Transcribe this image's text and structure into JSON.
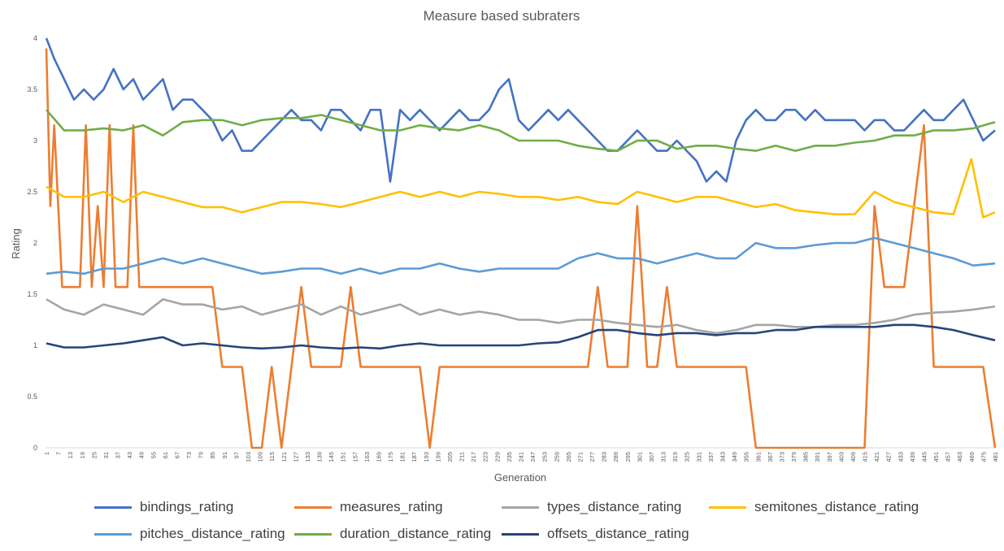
{
  "chart_data": {
    "type": "line",
    "title": "Measure based subraters",
    "xlabel": "Generation",
    "ylabel": "Rating",
    "ylim": [
      0,
      4
    ],
    "xlim": [
      1,
      481
    ],
    "ytick_labels": [
      "0",
      "0.5",
      "1",
      "1.5",
      "2",
      "2.5",
      "3",
      "3.5",
      "4"
    ],
    "xtick_labels": [
      "1",
      "7",
      "13",
      "19",
      "25",
      "31",
      "37",
      "43",
      "49",
      "55",
      "61",
      "67",
      "73",
      "79",
      "85",
      "91",
      "97",
      "103",
      "109",
      "115",
      "121",
      "127",
      "133",
      "139",
      "145",
      "151",
      "157",
      "163",
      "169",
      "175",
      "181",
      "187",
      "193",
      "199",
      "205",
      "211",
      "217",
      "223",
      "229",
      "235",
      "241",
      "247",
      "253",
      "259",
      "265",
      "271",
      "277",
      "283",
      "289",
      "295",
      "301",
      "307",
      "313",
      "319",
      "325",
      "331",
      "337",
      "343",
      "349",
      "355",
      "361",
      "367",
      "373",
      "379",
      "385",
      "391",
      "397",
      "403",
      "409",
      "415",
      "421",
      "427",
      "433",
      "439",
      "445",
      "451",
      "457",
      "463",
      "469",
      "475",
      "481"
    ],
    "grid": false,
    "legend_position": "bottom",
    "series": [
      {
        "name": "bindings_rating",
        "color": "#4472C4",
        "x": [
          1,
          5,
          10,
          15,
          20,
          25,
          30,
          35,
          40,
          45,
          50,
          55,
          60,
          65,
          70,
          75,
          80,
          85,
          90,
          95,
          100,
          105,
          110,
          115,
          120,
          125,
          130,
          135,
          140,
          145,
          150,
          155,
          160,
          165,
          170,
          175,
          180,
          185,
          190,
          195,
          200,
          205,
          210,
          215,
          220,
          225,
          230,
          235,
          240,
          245,
          250,
          255,
          260,
          265,
          270,
          275,
          280,
          285,
          290,
          295,
          300,
          305,
          310,
          315,
          320,
          325,
          330,
          335,
          340,
          345,
          350,
          355,
          360,
          365,
          370,
          375,
          380,
          385,
          390,
          395,
          400,
          405,
          410,
          415,
          420,
          425,
          430,
          435,
          440,
          445,
          450,
          455,
          460,
          465,
          470,
          475,
          481
        ],
        "y": [
          4.0,
          3.8,
          3.6,
          3.4,
          3.5,
          3.4,
          3.5,
          3.7,
          3.5,
          3.6,
          3.4,
          3.5,
          3.6,
          3.3,
          3.4,
          3.4,
          3.3,
          3.2,
          3.0,
          3.1,
          2.9,
          2.9,
          3.0,
          3.1,
          3.2,
          3.3,
          3.2,
          3.2,
          3.1,
          3.3,
          3.3,
          3.2,
          3.1,
          3.3,
          3.3,
          2.6,
          3.3,
          3.2,
          3.3,
          3.2,
          3.1,
          3.2,
          3.3,
          3.2,
          3.2,
          3.3,
          3.5,
          3.6,
          3.2,
          3.1,
          3.2,
          3.3,
          3.2,
          3.3,
          3.2,
          3.1,
          3.0,
          2.9,
          2.9,
          3.0,
          3.1,
          3.0,
          2.9,
          2.9,
          3.0,
          2.9,
          2.8,
          2.6,
          2.7,
          2.6,
          3.0,
          3.2,
          3.3,
          3.2,
          3.2,
          3.3,
          3.3,
          3.2,
          3.3,
          3.2,
          3.2,
          3.2,
          3.2,
          3.1,
          3.2,
          3.2,
          3.1,
          3.1,
          3.2,
          3.3,
          3.2,
          3.2,
          3.3,
          3.4,
          3.2,
          3.0,
          3.1
        ]
      },
      {
        "name": "measures_rating",
        "color": "#ED7D31",
        "x": [
          1,
          3,
          5,
          7,
          9,
          11,
          13,
          15,
          18,
          21,
          24,
          27,
          30,
          33,
          36,
          39,
          42,
          45,
          48,
          51,
          55,
          60,
          65,
          70,
          75,
          80,
          85,
          90,
          95,
          100,
          105,
          110,
          115,
          120,
          125,
          130,
          135,
          140,
          145,
          150,
          155,
          160,
          165,
          170,
          175,
          180,
          185,
          190,
          195,
          200,
          205,
          210,
          215,
          220,
          225,
          230,
          235,
          240,
          245,
          250,
          255,
          260,
          265,
          270,
          275,
          280,
          285,
          290,
          295,
          300,
          305,
          310,
          315,
          320,
          325,
          330,
          335,
          340,
          345,
          350,
          355,
          360,
          365,
          370,
          375,
          380,
          385,
          390,
          395,
          400,
          405,
          410,
          415,
          420,
          425,
          430,
          435,
          440,
          445,
          450,
          455,
          460,
          465,
          470,
          475,
          481
        ],
        "y": [
          3.9,
          2.36,
          3.15,
          2.36,
          1.57,
          1.57,
          1.57,
          1.57,
          1.57,
          3.15,
          1.57,
          2.36,
          1.57,
          3.15,
          1.57,
          1.57,
          1.57,
          3.15,
          1.57,
          1.57,
          1.57,
          1.57,
          1.57,
          1.57,
          1.57,
          1.57,
          1.57,
          0.79,
          0.79,
          0.79,
          0.0,
          0.0,
          0.79,
          0.0,
          0.79,
          1.57,
          0.79,
          0.79,
          0.79,
          0.79,
          1.57,
          0.79,
          0.79,
          0.79,
          0.79,
          0.79,
          0.79,
          0.79,
          0.0,
          0.79,
          0.79,
          0.79,
          0.79,
          0.79,
          0.79,
          0.79,
          0.79,
          0.79,
          0.79,
          0.79,
          0.79,
          0.79,
          0.79,
          0.79,
          0.79,
          1.57,
          0.79,
          0.79,
          0.79,
          2.36,
          0.79,
          0.79,
          1.57,
          0.79,
          0.79,
          0.79,
          0.79,
          0.79,
          0.79,
          0.79,
          0.79,
          0.0,
          0.0,
          0.0,
          0.0,
          0.0,
          0.0,
          0.0,
          0.0,
          0.0,
          0.0,
          0.0,
          0.0,
          2.36,
          1.57,
          1.57,
          1.57,
          2.36,
          3.15,
          0.79,
          0.79,
          0.79,
          0.79,
          0.79,
          0.79,
          0.0
        ]
      },
      {
        "name": "types_distance_rating",
        "color": "#A5A5A5",
        "x": [
          1,
          10,
          20,
          30,
          40,
          50,
          60,
          70,
          80,
          90,
          100,
          110,
          120,
          130,
          140,
          150,
          160,
          170,
          180,
          190,
          200,
          210,
          220,
          230,
          240,
          250,
          260,
          270,
          280,
          290,
          300,
          310,
          320,
          330,
          340,
          350,
          360,
          370,
          380,
          390,
          400,
          410,
          420,
          430,
          440,
          450,
          460,
          470,
          481
        ],
        "y": [
          1.45,
          1.35,
          1.3,
          1.4,
          1.35,
          1.3,
          1.45,
          1.4,
          1.4,
          1.35,
          1.38,
          1.3,
          1.35,
          1.4,
          1.3,
          1.38,
          1.3,
          1.35,
          1.4,
          1.3,
          1.35,
          1.3,
          1.33,
          1.3,
          1.25,
          1.25,
          1.22,
          1.25,
          1.25,
          1.22,
          1.2,
          1.18,
          1.2,
          1.15,
          1.12,
          1.15,
          1.2,
          1.2,
          1.18,
          1.18,
          1.2,
          1.2,
          1.22,
          1.25,
          1.3,
          1.32,
          1.33,
          1.35,
          1.38
        ]
      },
      {
        "name": "semitones_distance_rating",
        "color": "#FFC000",
        "x": [
          1,
          10,
          20,
          30,
          40,
          50,
          60,
          70,
          80,
          90,
          100,
          110,
          120,
          130,
          140,
          150,
          160,
          170,
          180,
          190,
          200,
          210,
          220,
          230,
          240,
          250,
          260,
          270,
          280,
          290,
          300,
          310,
          320,
          330,
          340,
          350,
          360,
          370,
          380,
          390,
          400,
          410,
          420,
          430,
          440,
          450,
          460,
          469,
          475,
          481
        ],
        "y": [
          2.55,
          2.45,
          2.45,
          2.5,
          2.4,
          2.5,
          2.45,
          2.4,
          2.35,
          2.35,
          2.3,
          2.35,
          2.4,
          2.4,
          2.38,
          2.35,
          2.4,
          2.45,
          2.5,
          2.45,
          2.5,
          2.45,
          2.5,
          2.48,
          2.45,
          2.45,
          2.42,
          2.45,
          2.4,
          2.38,
          2.5,
          2.45,
          2.4,
          2.45,
          2.45,
          2.4,
          2.35,
          2.38,
          2.32,
          2.3,
          2.28,
          2.28,
          2.5,
          2.4,
          2.35,
          2.3,
          2.28,
          2.82,
          2.25,
          2.3
        ]
      },
      {
        "name": "pitches_distance_rating",
        "color": "#5B9BD5",
        "x": [
          1,
          10,
          20,
          30,
          40,
          50,
          60,
          70,
          80,
          90,
          100,
          110,
          120,
          130,
          140,
          150,
          160,
          170,
          180,
          190,
          200,
          210,
          220,
          230,
          240,
          250,
          260,
          270,
          280,
          290,
          300,
          310,
          320,
          330,
          340,
          350,
          360,
          370,
          380,
          390,
          400,
          410,
          420,
          430,
          440,
          450,
          460,
          470,
          481
        ],
        "y": [
          1.7,
          1.72,
          1.7,
          1.75,
          1.75,
          1.8,
          1.85,
          1.8,
          1.85,
          1.8,
          1.75,
          1.7,
          1.72,
          1.75,
          1.75,
          1.7,
          1.75,
          1.7,
          1.75,
          1.75,
          1.8,
          1.75,
          1.72,
          1.75,
          1.75,
          1.75,
          1.75,
          1.85,
          1.9,
          1.85,
          1.85,
          1.8,
          1.85,
          1.9,
          1.85,
          1.85,
          2.0,
          1.95,
          1.95,
          1.98,
          2.0,
          2.0,
          2.05,
          2.0,
          1.95,
          1.9,
          1.85,
          1.78,
          1.8
        ]
      },
      {
        "name": "duration_distance_rating",
        "color": "#70AD47",
        "x": [
          1,
          10,
          20,
          30,
          40,
          50,
          60,
          70,
          80,
          90,
          100,
          110,
          120,
          130,
          140,
          150,
          160,
          170,
          180,
          190,
          200,
          210,
          220,
          230,
          240,
          250,
          260,
          270,
          280,
          290,
          300,
          310,
          320,
          330,
          340,
          350,
          360,
          370,
          380,
          390,
          400,
          410,
          420,
          430,
          440,
          450,
          460,
          470,
          481
        ],
        "y": [
          3.3,
          3.1,
          3.1,
          3.12,
          3.1,
          3.15,
          3.05,
          3.18,
          3.2,
          3.2,
          3.15,
          3.2,
          3.22,
          3.22,
          3.25,
          3.2,
          3.15,
          3.1,
          3.1,
          3.15,
          3.12,
          3.1,
          3.15,
          3.1,
          3.0,
          3.0,
          3.0,
          2.95,
          2.92,
          2.9,
          3.0,
          3.0,
          2.92,
          2.95,
          2.95,
          2.92,
          2.9,
          2.95,
          2.9,
          2.95,
          2.95,
          2.98,
          3.0,
          3.05,
          3.05,
          3.1,
          3.1,
          3.12,
          3.18
        ]
      },
      {
        "name": "offsets_distance_rating",
        "color": "#264478",
        "x": [
          1,
          10,
          20,
          30,
          40,
          50,
          60,
          70,
          80,
          90,
          100,
          110,
          120,
          130,
          140,
          150,
          160,
          170,
          180,
          190,
          200,
          210,
          220,
          230,
          240,
          250,
          260,
          270,
          280,
          290,
          300,
          310,
          320,
          330,
          340,
          350,
          360,
          370,
          380,
          390,
          400,
          410,
          420,
          430,
          440,
          450,
          460,
          470,
          481
        ],
        "y": [
          1.02,
          0.98,
          0.98,
          1.0,
          1.02,
          1.05,
          1.08,
          1.0,
          1.02,
          1.0,
          0.98,
          0.97,
          0.98,
          1.0,
          0.98,
          0.97,
          0.98,
          0.97,
          1.0,
          1.02,
          1.0,
          1.0,
          1.0,
          1.0,
          1.0,
          1.02,
          1.03,
          1.08,
          1.15,
          1.15,
          1.12,
          1.1,
          1.12,
          1.12,
          1.1,
          1.12,
          1.12,
          1.15,
          1.15,
          1.18,
          1.18,
          1.18,
          1.18,
          1.2,
          1.2,
          1.18,
          1.15,
          1.1,
          1.05
        ]
      }
    ]
  }
}
